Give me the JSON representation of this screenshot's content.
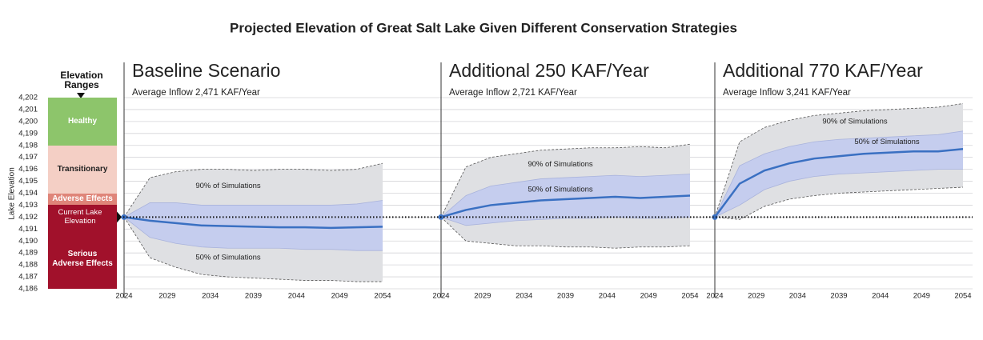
{
  "title": "Projected Elevation of Great Salt Lake Given Different Conservation Strategies",
  "y_axis": {
    "label": "Lake Elevation",
    "ylim": [
      4186,
      4202
    ],
    "yticks": [
      {
        "value": 4186,
        "label": "4,186"
      },
      {
        "value": 4187,
        "label": "4,187"
      },
      {
        "value": 4188,
        "label": "4,188"
      },
      {
        "value": 4189,
        "label": "4,189"
      },
      {
        "value": 4190,
        "label": "4,190"
      },
      {
        "value": 4191,
        "label": "4,191"
      },
      {
        "value": 4192,
        "label": "4,192"
      },
      {
        "value": 4193,
        "label": "4,193"
      },
      {
        "value": 4194,
        "label": "4,194"
      },
      {
        "value": 4195,
        "label": "4,195"
      },
      {
        "value": 4196,
        "label": "4,196"
      },
      {
        "value": 4197,
        "label": "4,197"
      },
      {
        "value": 4198,
        "label": "4,198"
      },
      {
        "value": 4199,
        "label": "4,199"
      },
      {
        "value": 4200,
        "label": "4,200"
      },
      {
        "value": 4201,
        "label": "4,201"
      },
      {
        "value": 4202,
        "label": "4,202"
      }
    ],
    "grid": true
  },
  "elevation_ranges": {
    "title": "Elevation Ranges",
    "ranges": [
      {
        "label": "Healthy",
        "from": 4198,
        "to": 4202,
        "color": "#8dc56b",
        "text_color": "#ffffff"
      },
      {
        "label": "Transitionary",
        "from": 4194,
        "to": 4198,
        "color": "#f4cfc5",
        "text_color": "#222222"
      },
      {
        "label": "Adverse Effects",
        "from": 4193,
        "to": 4194,
        "color": "#df8579",
        "text_color": "#ffffff"
      },
      {
        "label": "Serious Adverse Effects",
        "from": 4186,
        "to": 4193,
        "color": "#a1112b",
        "text_color": "#ffffff"
      }
    ],
    "current": {
      "label": "Current Lake Elevation",
      "value": 4192
    }
  },
  "chart_data": [
    {
      "type": "band",
      "title": "Baseline Scenario",
      "subtitle": "Average Inflow 2,471 KAF/Year",
      "x": [
        2024,
        2027,
        2030,
        2033,
        2036,
        2039,
        2042,
        2045,
        2048,
        2051,
        2054
      ],
      "xlim": [
        2024,
        2054
      ],
      "xticks": [
        2024,
        2029,
        2034,
        2039,
        2044,
        2049,
        2054
      ],
      "bands": [
        {
          "label": "90% of Simulations",
          "color": "#dfe0e3",
          "upper": [
            4192,
            4195.3,
            4195.8,
            4196.0,
            4196.0,
            4195.9,
            4196.0,
            4196.0,
            4195.9,
            4196.0,
            4196.5
          ],
          "lower": [
            4192,
            4188.6,
            4187.8,
            4187.2,
            4187.0,
            4186.9,
            4186.8,
            4186.7,
            4186.7,
            4186.6,
            4186.6
          ]
        },
        {
          "label": "50% of Simulations",
          "color": "#c5cdee",
          "upper": [
            4192,
            4193.2,
            4193.2,
            4193.0,
            4193.0,
            4193.0,
            4193.0,
            4193.0,
            4193.0,
            4193.1,
            4193.4
          ],
          "lower": [
            4192,
            4190.3,
            4189.8,
            4189.5,
            4189.4,
            4189.4,
            4189.4,
            4189.3,
            4189.3,
            4189.2,
            4189.2
          ]
        }
      ],
      "median": {
        "color": "#3a70c2",
        "values": [
          4192,
          4191.7,
          4191.5,
          4191.3,
          4191.25,
          4191.2,
          4191.15,
          4191.15,
          4191.1,
          4191.15,
          4191.2
        ]
      }
    },
    {
      "type": "band",
      "title": "Additional 250 KAF/Year",
      "subtitle": "Average Inflow 2,721 KAF/Year",
      "x": [
        2024,
        2027,
        2030,
        2033,
        2036,
        2039,
        2042,
        2045,
        2048,
        2051,
        2054
      ],
      "xlim": [
        2024,
        2054
      ],
      "xticks": [
        2024,
        2029,
        2034,
        2039,
        2044,
        2049,
        2054
      ],
      "bands": [
        {
          "label": "90% of Simulations",
          "color": "#dfe0e3",
          "upper": [
            4192,
            4196.2,
            4197.0,
            4197.3,
            4197.6,
            4197.7,
            4197.8,
            4197.8,
            4197.9,
            4197.8,
            4198.1
          ],
          "lower": [
            4192,
            4190.0,
            4189.8,
            4189.6,
            4189.6,
            4189.5,
            4189.5,
            4189.4,
            4189.5,
            4189.5,
            4189.6
          ]
        },
        {
          "label": "50% of Simulations",
          "color": "#c5cdee",
          "upper": [
            4192,
            4193.8,
            4194.6,
            4194.9,
            4195.2,
            4195.3,
            4195.4,
            4195.5,
            4195.4,
            4195.5,
            4195.6
          ],
          "lower": [
            4192,
            4191.3,
            4191.5,
            4191.7,
            4191.8,
            4191.9,
            4191.9,
            4192.0,
            4191.9,
            4191.9,
            4192.0
          ]
        }
      ],
      "median": {
        "color": "#3a70c2",
        "values": [
          4192,
          4192.6,
          4193.0,
          4193.2,
          4193.4,
          4193.5,
          4193.6,
          4193.7,
          4193.6,
          4193.7,
          4193.8
        ]
      }
    },
    {
      "type": "band",
      "title": "Additional 770 KAF/Year",
      "subtitle": "Average Inflow 3,241 KAF/Year",
      "x": [
        2024,
        2027,
        2030,
        2033,
        2036,
        2039,
        2042,
        2045,
        2048,
        2051,
        2054
      ],
      "xlim": [
        2024,
        2054
      ],
      "xticks": [
        2024,
        2029,
        2034,
        2039,
        2044,
        2049,
        2054
      ],
      "bands": [
        {
          "label": "90% of Simulations",
          "color": "#dfe0e3",
          "upper": [
            4192,
            4198.3,
            4199.5,
            4200.1,
            4200.5,
            4200.7,
            4200.9,
            4201.0,
            4201.1,
            4201.2,
            4201.5
          ],
          "lower": [
            4192,
            4191.8,
            4192.9,
            4193.5,
            4193.8,
            4194.0,
            4194.1,
            4194.2,
            4194.3,
            4194.4,
            4194.5
          ]
        },
        {
          "label": "50% of Simulations",
          "color": "#c5cdee",
          "upper": [
            4192,
            4196.3,
            4197.3,
            4197.9,
            4198.3,
            4198.5,
            4198.6,
            4198.7,
            4198.8,
            4198.9,
            4199.2
          ],
          "lower": [
            4192,
            4193.0,
            4194.3,
            4195.0,
            4195.4,
            4195.6,
            4195.7,
            4195.8,
            4195.9,
            4196.0,
            4196.0
          ]
        }
      ],
      "median": {
        "color": "#3a70c2",
        "values": [
          4192,
          4194.8,
          4195.9,
          4196.5,
          4196.9,
          4197.1,
          4197.3,
          4197.4,
          4197.5,
          4197.5,
          4197.7
        ]
      }
    }
  ]
}
